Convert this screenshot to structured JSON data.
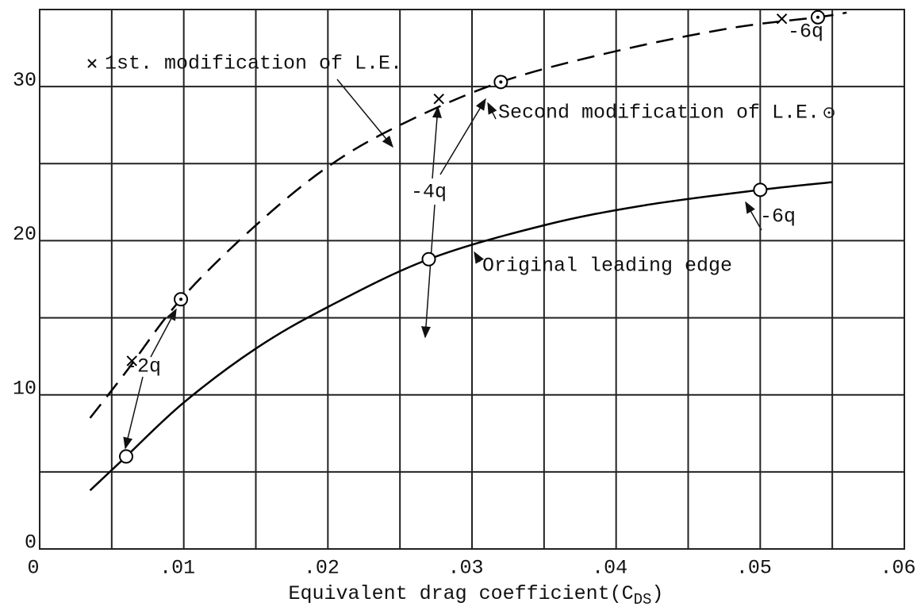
{
  "chart_data": {
    "type": "line",
    "xlabel": {
      "text": "Equivalent drag coefficient(C",
      "subscript": "DS",
      "suffix": ")"
    },
    "xlim": [
      0,
      0.06
    ],
    "ylim": [
      0,
      35
    ],
    "xticks": [
      0,
      {
        "value": 0.01,
        "label": ".01"
      },
      {
        "value": 0.02,
        "label": ".02"
      },
      {
        "value": 0.03,
        "label": ".03"
      },
      {
        "value": 0.04,
        "label": ".04"
      },
      {
        "value": 0.05,
        "label": ".05"
      },
      {
        "value": 0.06,
        "label": ".06"
      }
    ],
    "yticks": [
      0,
      10,
      20,
      30
    ],
    "xminor": [
      0.005,
      0.015,
      0.025,
      0.035,
      0.045,
      0.055
    ],
    "yminor": [
      5,
      15,
      25
    ],
    "grid": true,
    "series": [
      {
        "name": "Original leading edge",
        "color": "#000000",
        "marker": "circle",
        "dash": false,
        "x": [
          0.006,
          0.027,
          0.05
        ],
        "values": [
          6,
          18.8,
          23.3
        ],
        "curve_x": [
          0.0035,
          0.006,
          0.01,
          0.015,
          0.02,
          0.027,
          0.035,
          0.042,
          0.05,
          0.055
        ],
        "curve_y": [
          3.8,
          6,
          9.5,
          13,
          15.7,
          18.8,
          21,
          22.3,
          23.3,
          23.8
        ]
      },
      {
        "name": "1st. modification of L.E.",
        "color": "#000000",
        "marker": "cross",
        "x": [
          0.0064,
          0.0277,
          0.0515
        ],
        "values": [
          12.2,
          29.2,
          34.4
        ]
      },
      {
        "name": "Second modification of L.E.",
        "color": "#000000",
        "marker": "dotcircle",
        "dash": true,
        "x": [
          0.0098,
          0.032,
          0.054
        ],
        "values": [
          16.2,
          30.3,
          34.5
        ],
        "curve_x": [
          0.0035,
          0.006,
          0.0098,
          0.015,
          0.02,
          0.025,
          0.032,
          0.04,
          0.048,
          0.054,
          0.056
        ],
        "curve_y": [
          8.5,
          11.5,
          16.2,
          21,
          24.8,
          27.5,
          30.3,
          32.3,
          33.8,
          34.5,
          34.8
        ]
      }
    ],
    "annotations": [
      "-2q",
      "-4q",
      "-6q",
      "-6q"
    ]
  }
}
